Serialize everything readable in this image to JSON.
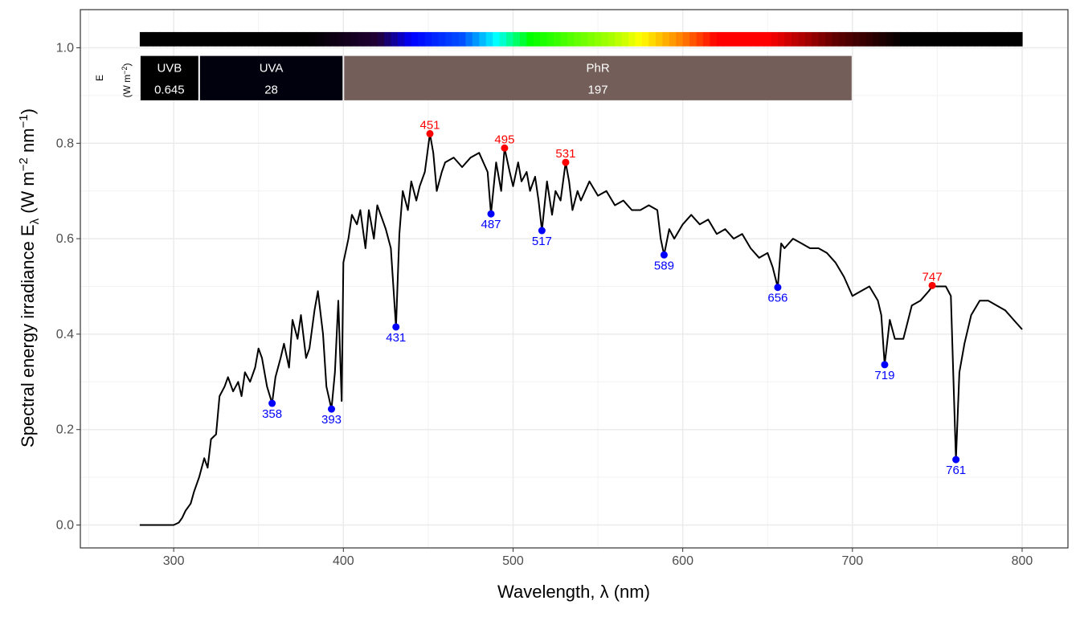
{
  "chart_data": {
    "type": "line",
    "xlabel": "Wavelength, λ (nm)",
    "ylabel": {
      "main": "Spectral  energy  irradiance  E",
      "sub": "λ",
      "units_open": "  (W m",
      "units_exp1": "−2",
      "units_mid": " nm",
      "units_exp2": "−1",
      "units_close": ")"
    },
    "xlim": [
      245,
      827
    ],
    "ylim": [
      -0.048,
      1.08
    ],
    "x_ticks": [
      300,
      400,
      500,
      600,
      700,
      800
    ],
    "x_tick_labels": [
      "300",
      "400",
      "500",
      "600",
      "700",
      "800"
    ],
    "y_ticks": [
      0.0,
      0.2,
      0.4,
      0.6,
      0.8,
      1.0
    ],
    "y_tick_labels": [
      "0.0",
      "0.2",
      "0.4",
      "0.6",
      "0.8",
      "1.0"
    ],
    "grid": true,
    "line_color": "#000000",
    "series": [
      {
        "x": [
          280,
          290,
          300,
          303,
          305,
          307,
          310,
          312,
          315,
          318,
          320,
          322,
          325,
          327,
          330,
          332,
          335,
          338,
          340,
          342,
          345,
          348,
          350,
          352,
          355,
          358,
          360,
          363,
          365,
          368,
          370,
          373,
          375,
          378,
          380,
          383,
          385,
          388,
          390,
          393,
          395,
          397,
          399,
          400,
          403,
          405,
          408,
          410,
          413,
          415,
          418,
          420,
          423,
          425,
          428,
          431,
          433,
          435,
          438,
          440,
          443,
          445,
          448,
          451,
          453,
          455,
          458,
          460,
          465,
          470,
          475,
          480,
          485,
          487,
          490,
          493,
          495,
          498,
          500,
          503,
          505,
          508,
          510,
          513,
          515,
          517,
          520,
          523,
          525,
          528,
          531,
          533,
          535,
          538,
          540,
          545,
          550,
          555,
          560,
          565,
          570,
          575,
          580,
          585,
          587,
          589,
          592,
          595,
          600,
          605,
          610,
          615,
          620,
          625,
          630,
          635,
          640,
          645,
          650,
          653,
          656,
          658,
          660,
          665,
          670,
          675,
          680,
          685,
          690,
          695,
          700,
          705,
          710,
          715,
          717,
          719,
          722,
          725,
          730,
          735,
          740,
          745,
          747,
          750,
          755,
          758,
          761,
          763,
          766,
          770,
          775,
          780,
          785,
          790,
          795,
          800
        ],
        "y": [
          0.0,
          0.0,
          0.0,
          0.005,
          0.015,
          0.03,
          0.045,
          0.07,
          0.1,
          0.14,
          0.12,
          0.18,
          0.19,
          0.27,
          0.29,
          0.31,
          0.28,
          0.3,
          0.27,
          0.32,
          0.3,
          0.33,
          0.37,
          0.35,
          0.29,
          0.255,
          0.31,
          0.35,
          0.38,
          0.33,
          0.43,
          0.39,
          0.44,
          0.35,
          0.37,
          0.45,
          0.49,
          0.4,
          0.29,
          0.243,
          0.32,
          0.47,
          0.26,
          0.55,
          0.6,
          0.65,
          0.63,
          0.66,
          0.58,
          0.66,
          0.6,
          0.67,
          0.64,
          0.62,
          0.58,
          0.415,
          0.61,
          0.7,
          0.66,
          0.72,
          0.68,
          0.71,
          0.74,
          0.82,
          0.78,
          0.7,
          0.74,
          0.76,
          0.77,
          0.75,
          0.77,
          0.78,
          0.74,
          0.652,
          0.76,
          0.7,
          0.79,
          0.74,
          0.71,
          0.76,
          0.72,
          0.74,
          0.7,
          0.73,
          0.68,
          0.617,
          0.72,
          0.65,
          0.7,
          0.68,
          0.76,
          0.72,
          0.66,
          0.7,
          0.68,
          0.72,
          0.69,
          0.7,
          0.67,
          0.68,
          0.66,
          0.66,
          0.67,
          0.66,
          0.6,
          0.566,
          0.62,
          0.6,
          0.63,
          0.65,
          0.63,
          0.64,
          0.61,
          0.62,
          0.6,
          0.61,
          0.58,
          0.56,
          0.57,
          0.54,
          0.498,
          0.59,
          0.58,
          0.6,
          0.59,
          0.58,
          0.58,
          0.57,
          0.55,
          0.52,
          0.48,
          0.49,
          0.5,
          0.47,
          0.44,
          0.336,
          0.43,
          0.39,
          0.39,
          0.46,
          0.47,
          0.49,
          0.5,
          0.5,
          0.5,
          0.48,
          0.137,
          0.32,
          0.38,
          0.44,
          0.47,
          0.47,
          0.46,
          0.45,
          0.43,
          0.41
        ]
      }
    ],
    "peaks": [
      {
        "x": 451,
        "y": 0.82,
        "label": "451"
      },
      {
        "x": 495,
        "y": 0.79,
        "label": "495"
      },
      {
        "x": 531,
        "y": 0.76,
        "label": "531"
      },
      {
        "x": 747,
        "y": 0.502,
        "label": "747"
      }
    ],
    "valleys": [
      {
        "x": 358,
        "y": 0.255,
        "label": "358"
      },
      {
        "x": 393,
        "y": 0.243,
        "label": "393"
      },
      {
        "x": 431,
        "y": 0.415,
        "label": "431"
      },
      {
        "x": 487,
        "y": 0.652,
        "label": "487"
      },
      {
        "x": 517,
        "y": 0.617,
        "label": "517"
      },
      {
        "x": 589,
        "y": 0.566,
        "label": "589"
      },
      {
        "x": 656,
        "y": 0.498,
        "label": "656"
      },
      {
        "x": 719,
        "y": 0.336,
        "label": "719"
      },
      {
        "x": 761,
        "y": 0.137,
        "label": "761"
      }
    ],
    "peak_color": "#ff0000",
    "valley_color": "#0000ff",
    "wavebands": [
      {
        "name": "UVB",
        "value": "0.645",
        "x0": 280,
        "x1": 315,
        "color": "#000000"
      },
      {
        "name": "UVA",
        "value": "28",
        "x0": 315,
        "x1": 400,
        "color": "#01000d"
      },
      {
        "name": "PhR",
        "value": "197",
        "x0": 400,
        "x1": 700,
        "color": "#735e59"
      }
    ],
    "waveband_legend": {
      "quantity": "E",
      "units": "(W m",
      "units_exp": "−2",
      "units_close": ")"
    },
    "color_bar": {
      "x_range": [
        280,
        800
      ],
      "stops": [
        {
          "nm": 380,
          "color": "#000000"
        },
        {
          "nm": 420,
          "color": "#210033"
        },
        {
          "nm": 440,
          "color": "#0000ff"
        },
        {
          "nm": 470,
          "color": "#0050ff"
        },
        {
          "nm": 490,
          "color": "#00ffff"
        },
        {
          "nm": 510,
          "color": "#00ff00"
        },
        {
          "nm": 560,
          "color": "#b0ff00"
        },
        {
          "nm": 575,
          "color": "#ffff00"
        },
        {
          "nm": 600,
          "color": "#ff7a00"
        },
        {
          "nm": 620,
          "color": "#ff0000"
        },
        {
          "nm": 650,
          "color": "#ff0000"
        },
        {
          "nm": 690,
          "color": "#600000"
        },
        {
          "nm": 730,
          "color": "#000000"
        }
      ]
    }
  }
}
